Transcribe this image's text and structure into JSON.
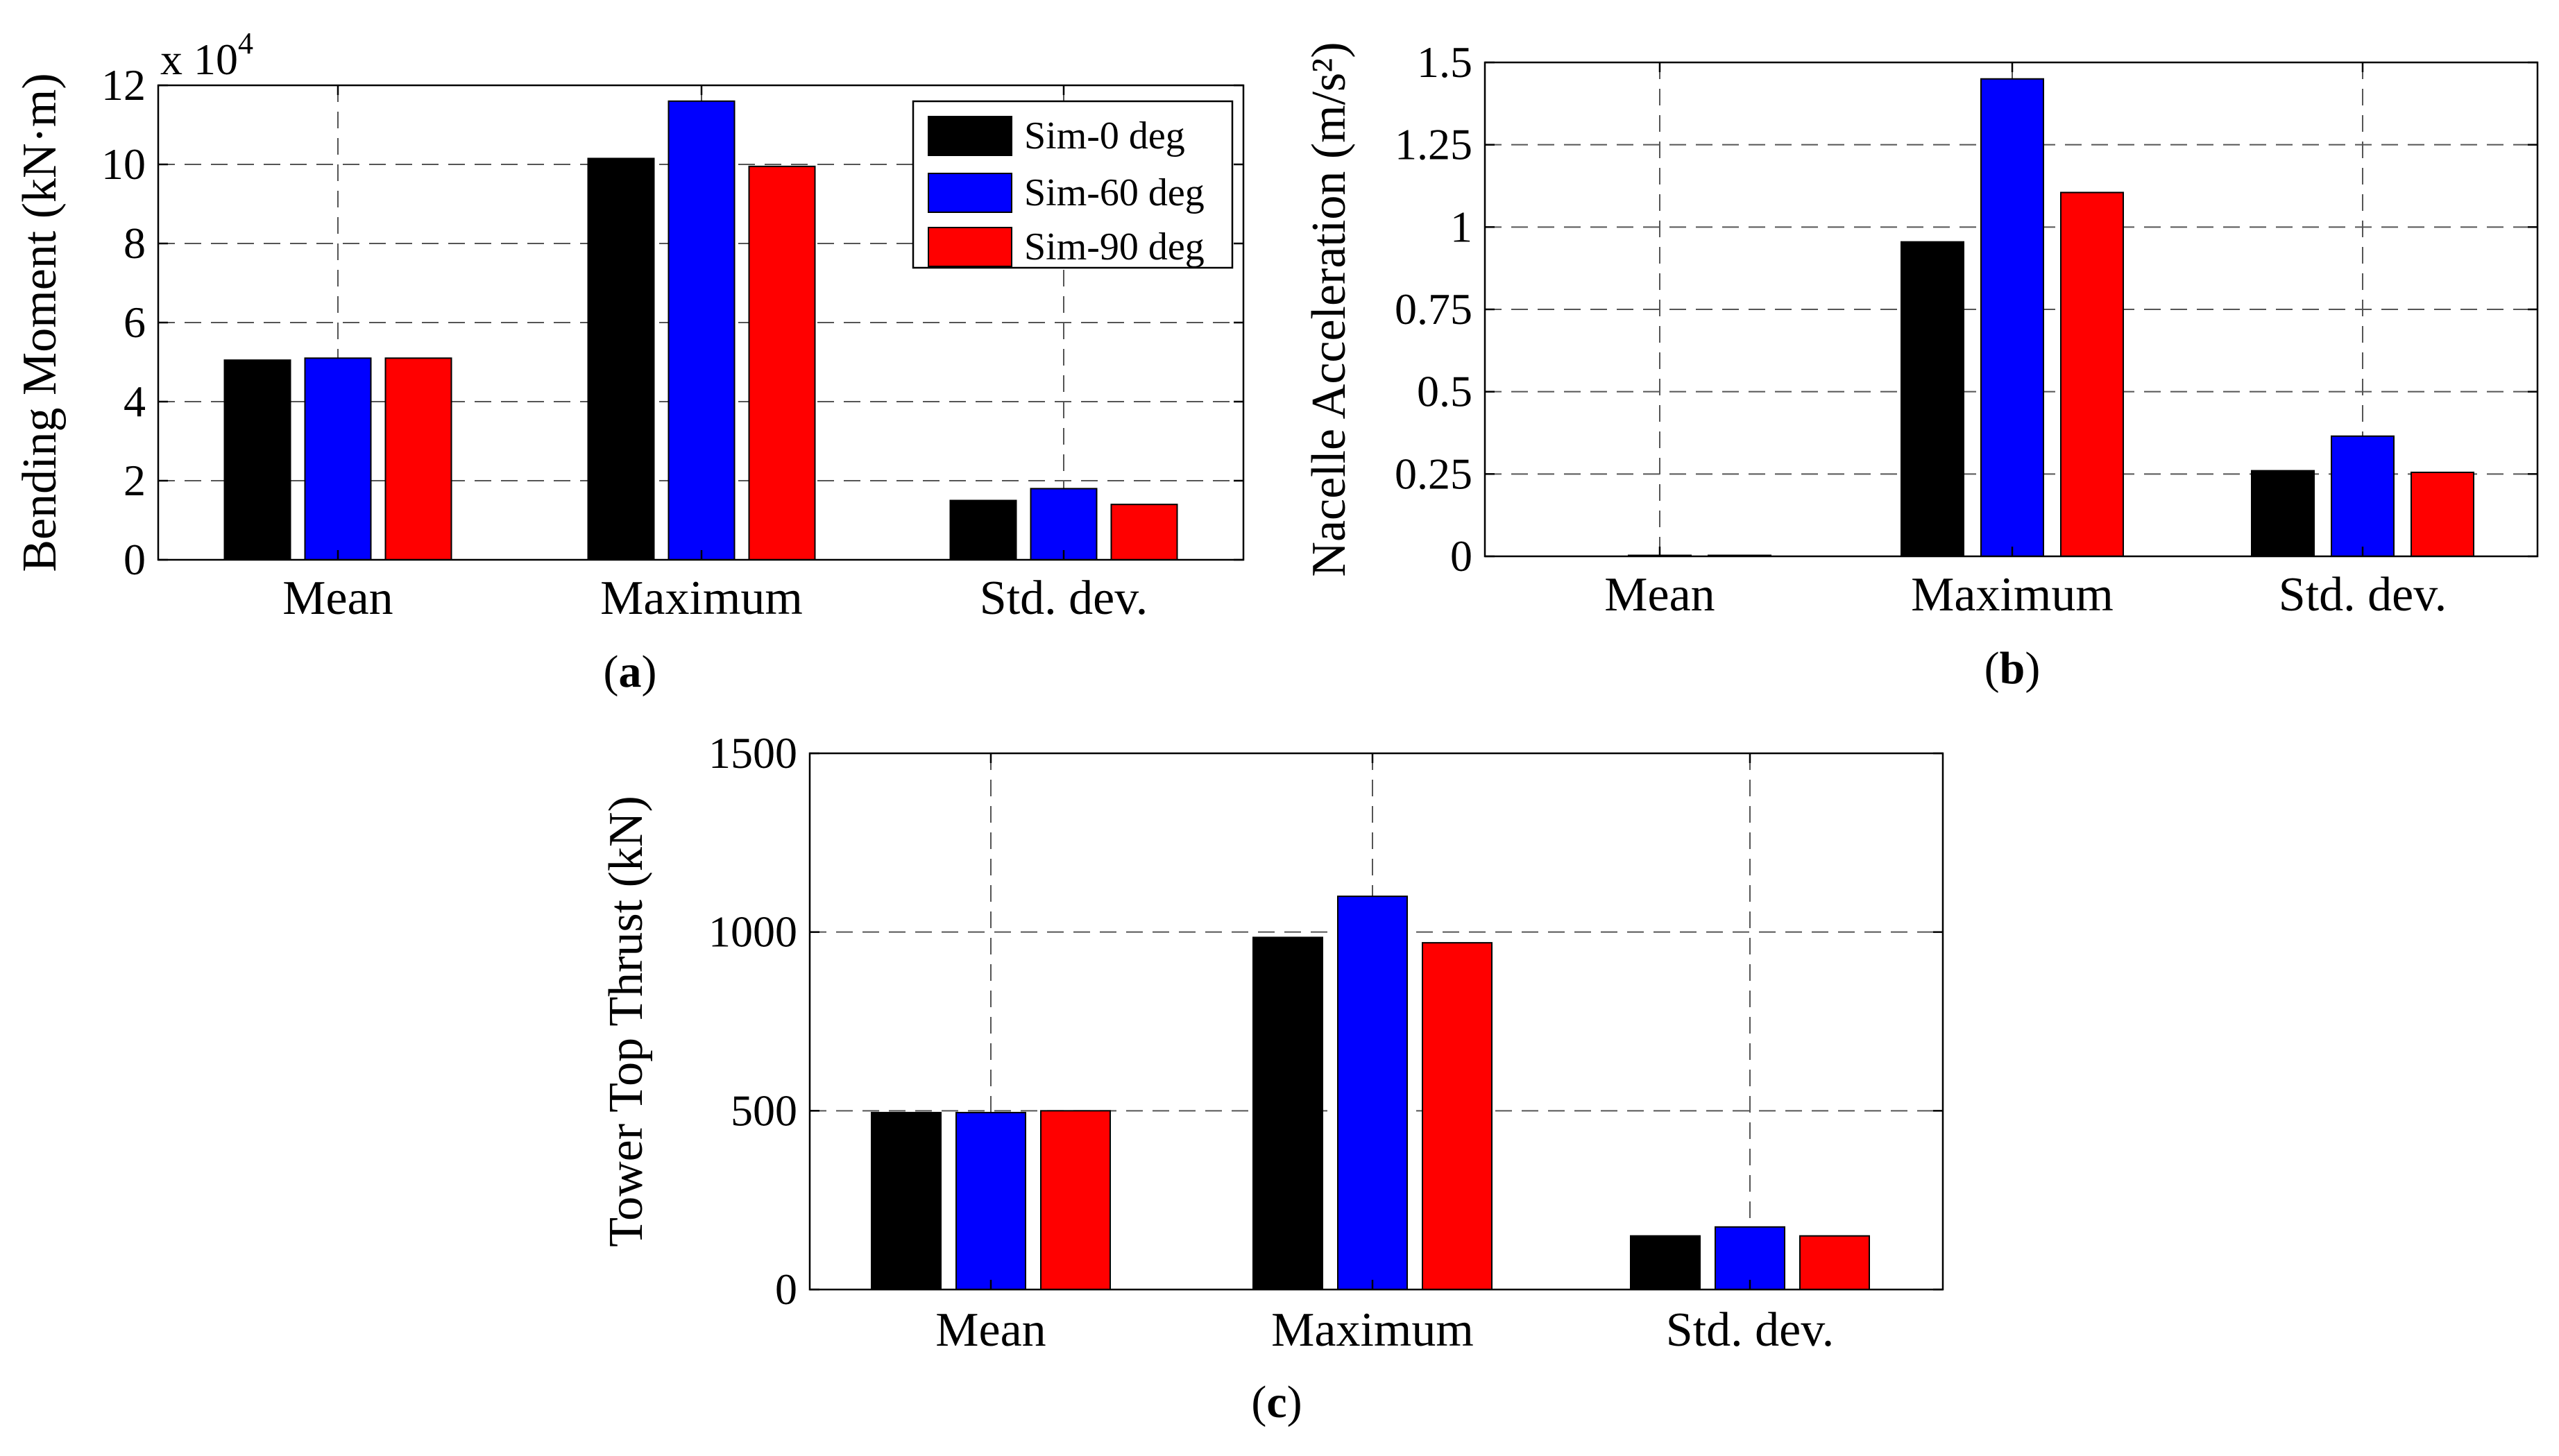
{
  "chart_data": [
    {
      "type": "bar",
      "panel_label": "a",
      "categories": [
        "Mean",
        "Maximum",
        "Std. dev."
      ],
      "series": [
        {
          "name": "Sim-0 deg",
          "color": "#000000",
          "values": [
            5.05,
            10.15,
            1.5
          ]
        },
        {
          "name": "Sim-60 deg",
          "color": "#0000ff",
          "values": [
            5.1,
            11.6,
            1.8
          ]
        },
        {
          "name": "Sim-90 deg",
          "color": "#ff0000",
          "values": [
            5.1,
            9.95,
            1.4
          ]
        }
      ],
      "ylabel": "Bending Moment (kN·m)",
      "multiplier": {
        "base": "x 10",
        "exponent": "4"
      },
      "ylim": [
        0,
        12
      ],
      "yticks": [
        0,
        2,
        4,
        6,
        8,
        10,
        12
      ],
      "ytick_labels": [
        "0",
        "2",
        "4",
        "6",
        "8",
        "10",
        "12"
      ],
      "grid": true,
      "legend": "top-right"
    },
    {
      "type": "bar",
      "panel_label": "b",
      "categories": [
        "Mean",
        "Maximum",
        "Std. dev."
      ],
      "series": [
        {
          "name": "Sim-0 deg",
          "color": "#000000",
          "values": [
            0.0,
            0.955,
            0.26
          ]
        },
        {
          "name": "Sim-60 deg",
          "color": "#0000ff",
          "values": [
            0.003,
            1.45,
            0.365
          ]
        },
        {
          "name": "Sim-90 deg",
          "color": "#ff0000",
          "values": [
            0.003,
            1.105,
            0.255
          ]
        }
      ],
      "ylabel": "Nacelle Acceleration (m/s²)",
      "ylim": [
        0,
        1.5
      ],
      "yticks": [
        0,
        0.25,
        0.5,
        0.75,
        1,
        1.25,
        1.5
      ],
      "ytick_labels": [
        "0",
        "0.25",
        "0.5",
        "0.75",
        "1",
        "1.25",
        "1.5"
      ],
      "grid": true
    },
    {
      "type": "bar",
      "panel_label": "c",
      "categories": [
        "Mean",
        "Maximum",
        "Std. dev."
      ],
      "series": [
        {
          "name": "Sim-0 deg",
          "color": "#000000",
          "values": [
            495,
            985,
            150
          ]
        },
        {
          "name": "Sim-60 deg",
          "color": "#0000ff",
          "values": [
            495,
            1100,
            175
          ]
        },
        {
          "name": "Sim-90 deg",
          "color": "#ff0000",
          "values": [
            500,
            970,
            150
          ]
        }
      ],
      "ylabel": "Tower Top Thrust (kN)",
      "ylim": [
        0,
        1500
      ],
      "yticks": [
        0,
        500,
        1000,
        1500
      ],
      "ytick_labels": [
        "0",
        "500",
        "1000",
        "1500"
      ],
      "grid": true
    }
  ]
}
